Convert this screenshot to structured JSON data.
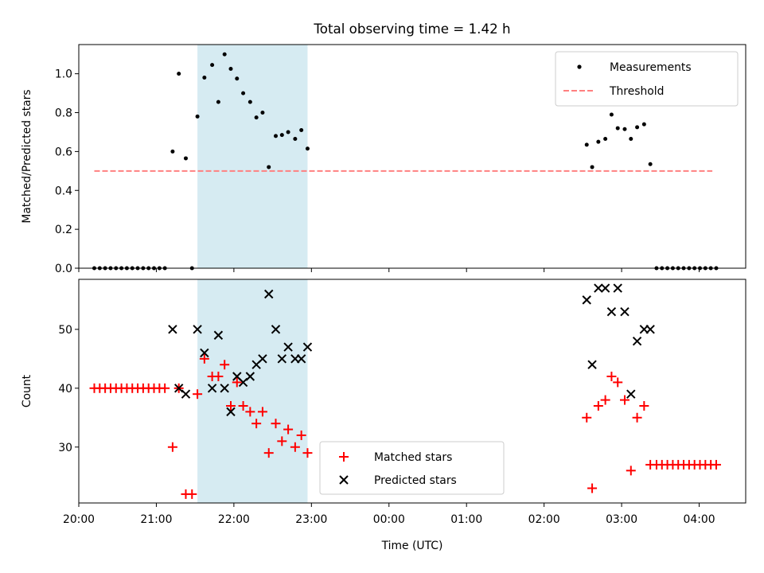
{
  "title": "Total observing time = 1.42 h",
  "colors": {
    "measurement": "#000000",
    "threshold": "#ff8080",
    "matched": "#ff0000",
    "predicted": "#000000",
    "span": "#add8e6"
  },
  "chart_data": [
    {
      "type": "scatter",
      "ylabel": "Matched/Predicted stars",
      "xlim": [
        20.0,
        28.6
      ],
      "ylim": [
        0,
        1.15
      ],
      "grid": false,
      "legend": "top-right",
      "highlight_span": [
        21.53,
        22.95
      ],
      "yticks": [
        {
          "v": 0.0,
          "label": "0.0"
        },
        {
          "v": 0.2,
          "label": "0.2"
        },
        {
          "v": 0.4,
          "label": "0.4"
        },
        {
          "v": 0.6,
          "label": "0.6"
        },
        {
          "v": 0.8,
          "label": "0.8"
        },
        {
          "v": 1.0,
          "label": "1.0"
        }
      ],
      "threshold_line": {
        "y": 0.5,
        "x_from": 20.2,
        "x_to": 28.17,
        "label": "Threshold"
      },
      "series": [
        {
          "name": "Measurements",
          "points": [
            [
              20.2,
              0
            ],
            [
              20.27,
              0
            ],
            [
              20.34,
              0
            ],
            [
              20.41,
              0
            ],
            [
              20.48,
              0
            ],
            [
              20.55,
              0
            ],
            [
              20.62,
              0
            ],
            [
              20.69,
              0
            ],
            [
              20.76,
              0
            ],
            [
              20.83,
              0
            ],
            [
              20.9,
              0
            ],
            [
              20.97,
              0
            ],
            [
              21.04,
              0
            ],
            [
              21.11,
              0
            ],
            [
              21.21,
              0.6
            ],
            [
              21.29,
              1.0
            ],
            [
              21.38,
              0.565
            ],
            [
              21.46,
              0
            ],
            [
              21.53,
              0.78
            ],
            [
              21.62,
              0.98
            ],
            [
              21.72,
              1.045
            ],
            [
              21.8,
              0.855
            ],
            [
              21.88,
              1.1
            ],
            [
              21.96,
              1.025
            ],
            [
              22.04,
              0.975
            ],
            [
              22.12,
              0.9
            ],
            [
              22.21,
              0.855
            ],
            [
              22.29,
              0.775
            ],
            [
              22.37,
              0.8
            ],
            [
              22.45,
              0.52
            ],
            [
              22.54,
              0.68
            ],
            [
              22.62,
              0.685
            ],
            [
              22.7,
              0.7
            ],
            [
              22.79,
              0.665
            ],
            [
              22.87,
              0.71
            ],
            [
              22.95,
              0.615
            ],
            [
              26.55,
              0.635
            ],
            [
              26.62,
              0.52
            ],
            [
              26.7,
              0.65
            ],
            [
              26.79,
              0.665
            ],
            [
              26.87,
              0.79
            ],
            [
              26.95,
              0.72
            ],
            [
              27.04,
              0.715
            ],
            [
              27.12,
              0.665
            ],
            [
              27.2,
              0.725
            ],
            [
              27.29,
              0.74
            ],
            [
              27.37,
              0.535
            ],
            [
              27.45,
              0
            ],
            [
              27.52,
              0
            ],
            [
              27.59,
              0
            ],
            [
              27.66,
              0
            ],
            [
              27.73,
              0
            ],
            [
              27.8,
              0
            ],
            [
              27.87,
              0
            ],
            [
              27.94,
              0
            ],
            [
              28.01,
              0
            ],
            [
              28.08,
              0
            ],
            [
              28.15,
              0
            ],
            [
              28.22,
              0
            ]
          ]
        }
      ]
    },
    {
      "type": "scatter",
      "xlabel": "Time (UTC)",
      "ylabel": "Count",
      "xlim": [
        20.0,
        28.6
      ],
      "ylim": [
        20.5,
        58.5
      ],
      "grid": false,
      "legend": "bottom-center",
      "highlight_span": [
        21.53,
        22.95
      ],
      "yticks": [
        {
          "v": 30,
          "label": "30"
        },
        {
          "v": 40,
          "label": "40"
        },
        {
          "v": 50,
          "label": "50"
        }
      ],
      "xticks": [
        {
          "v": 20,
          "label": "20:00"
        },
        {
          "v": 21,
          "label": "21:00"
        },
        {
          "v": 22,
          "label": "22:00"
        },
        {
          "v": 23,
          "label": "23:00"
        },
        {
          "v": 24,
          "label": "00:00"
        },
        {
          "v": 25,
          "label": "01:00"
        },
        {
          "v": 26,
          "label": "02:00"
        },
        {
          "v": 27,
          "label": "03:00"
        },
        {
          "v": 28,
          "label": "04:00"
        }
      ],
      "series": [
        {
          "name": "Matched stars",
          "marker": "plus",
          "points": [
            [
              20.2,
              40
            ],
            [
              20.27,
              40
            ],
            [
              20.34,
              40
            ],
            [
              20.41,
              40
            ],
            [
              20.48,
              40
            ],
            [
              20.55,
              40
            ],
            [
              20.62,
              40
            ],
            [
              20.69,
              40
            ],
            [
              20.76,
              40
            ],
            [
              20.83,
              40
            ],
            [
              20.9,
              40
            ],
            [
              20.97,
              40
            ],
            [
              21.04,
              40
            ],
            [
              21.11,
              40
            ],
            [
              21.21,
              30
            ],
            [
              21.29,
              40
            ],
            [
              21.38,
              22
            ],
            [
              21.46,
              22
            ],
            [
              21.53,
              39
            ],
            [
              21.62,
              45
            ],
            [
              21.72,
              42
            ],
            [
              21.8,
              42
            ],
            [
              21.88,
              44
            ],
            [
              21.96,
              37
            ],
            [
              22.04,
              41
            ],
            [
              22.12,
              37
            ],
            [
              22.21,
              36
            ],
            [
              22.29,
              34
            ],
            [
              22.37,
              36
            ],
            [
              22.45,
              29
            ],
            [
              22.54,
              34
            ],
            [
              22.62,
              31
            ],
            [
              22.7,
              33
            ],
            [
              22.79,
              30
            ],
            [
              22.87,
              32
            ],
            [
              22.95,
              29
            ],
            [
              26.55,
              35
            ],
            [
              26.62,
              23
            ],
            [
              26.7,
              37
            ],
            [
              26.79,
              38
            ],
            [
              26.87,
              42
            ],
            [
              26.95,
              41
            ],
            [
              27.04,
              38
            ],
            [
              27.12,
              26
            ],
            [
              27.2,
              35
            ],
            [
              27.29,
              37
            ],
            [
              27.37,
              27
            ],
            [
              27.45,
              27
            ],
            [
              27.52,
              27
            ],
            [
              27.59,
              27
            ],
            [
              27.66,
              27
            ],
            [
              27.73,
              27
            ],
            [
              27.8,
              27
            ],
            [
              27.87,
              27
            ],
            [
              27.94,
              27
            ],
            [
              28.01,
              27
            ],
            [
              28.08,
              27
            ],
            [
              28.15,
              27
            ],
            [
              28.22,
              27
            ]
          ]
        },
        {
          "name": "Predicted stars",
          "marker": "x",
          "points": [
            [
              21.21,
              50
            ],
            [
              21.29,
              40
            ],
            [
              21.38,
              39
            ],
            [
              21.53,
              50
            ],
            [
              21.62,
              46
            ],
            [
              21.72,
              40
            ],
            [
              21.8,
              49
            ],
            [
              21.88,
              40
            ],
            [
              21.96,
              36
            ],
            [
              22.04,
              42
            ],
            [
              22.12,
              41
            ],
            [
              22.21,
              42
            ],
            [
              22.29,
              44
            ],
            [
              22.37,
              45
            ],
            [
              22.45,
              56
            ],
            [
              22.54,
              50
            ],
            [
              22.62,
              45
            ],
            [
              22.7,
              47
            ],
            [
              22.79,
              45
            ],
            [
              22.87,
              45
            ],
            [
              22.95,
              47
            ],
            [
              26.55,
              55
            ],
            [
              26.62,
              44
            ],
            [
              26.7,
              57
            ],
            [
              26.79,
              57
            ],
            [
              26.87,
              53
            ],
            [
              26.95,
              57
            ],
            [
              27.04,
              53
            ],
            [
              27.12,
              39
            ],
            [
              27.2,
              48
            ],
            [
              27.29,
              50
            ],
            [
              27.37,
              50
            ]
          ]
        }
      ]
    }
  ]
}
